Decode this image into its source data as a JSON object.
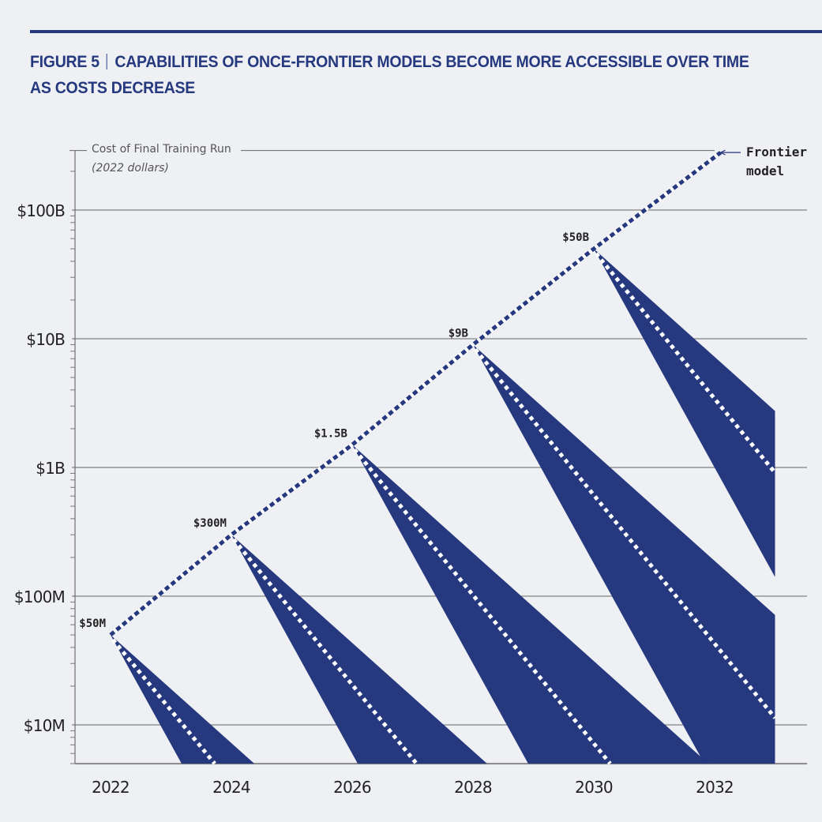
{
  "title": {
    "figure_label": "FIGURE 5",
    "text_line1": "CAPABILITIES OF ONCE-FRONTIER MODELS BECOME MORE ACCESSIBLE OVER TIME",
    "text_line2": "AS COSTS DECREASE"
  },
  "chart_data": {
    "type": "line",
    "ylabel": "Cost of Final Training Run",
    "ylabel_sub": "(2022 dollars)",
    "y_scale": "log",
    "ylim": [
      5000000,
      290000000000
    ],
    "xlim": [
      2021.4,
      2033.5
    ],
    "grid": "horizontal",
    "colors": {
      "navy": "#26397f",
      "background": "#eef0f4",
      "grid": "#666666"
    },
    "y_ticks": [
      {
        "value": 10000000,
        "label": "$10M"
      },
      {
        "value": 100000000,
        "label": "$100M"
      },
      {
        "value": 1000000000,
        "label": "$1B"
      },
      {
        "value": 10000000000,
        "label": "$10B"
      },
      {
        "value": 100000000000,
        "label": "$100B"
      }
    ],
    "x_ticks": [
      2022,
      2024,
      2026,
      2028,
      2030,
      2032
    ],
    "frontier": {
      "name": "Frontier model",
      "points": [
        {
          "year": 2022,
          "value": 50000000,
          "label": "$50M"
        },
        {
          "year": 2024,
          "value": 300000000,
          "label": "$300M"
        },
        {
          "year": 2026,
          "value": 1500000000,
          "label": "$1.5B"
        },
        {
          "year": 2028,
          "value": 9000000000,
          "label": "$9B"
        },
        {
          "year": 2030,
          "value": 50000000000,
          "label": "$50B"
        },
        {
          "year": 2032.1,
          "value": 280000000000,
          "label": ""
        }
      ]
    },
    "cost_decline_cones": {
      "end_year": 2033,
      "orders_of_magnitude_per_year": {
        "fast": 0.85,
        "central": 0.58,
        "slow": 0.42
      }
    }
  }
}
